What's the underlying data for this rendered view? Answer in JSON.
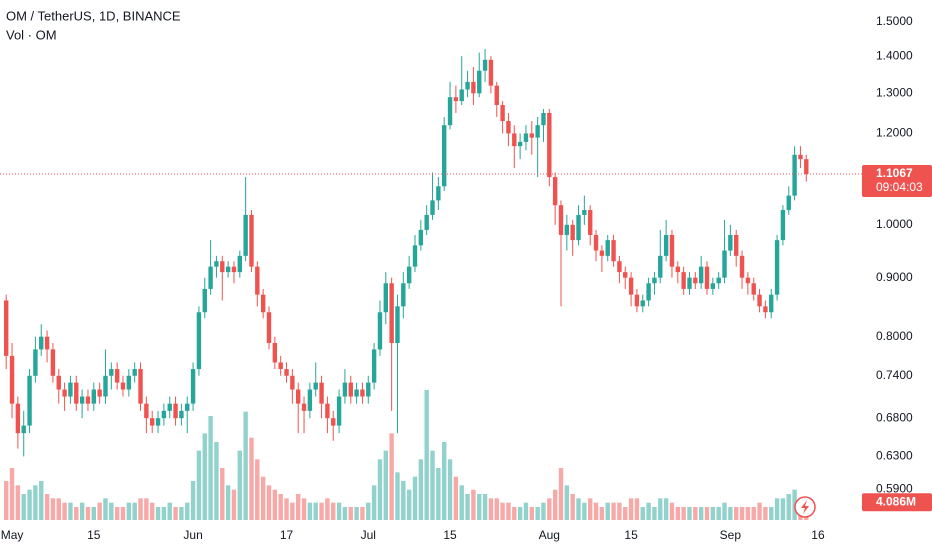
{
  "chart_data": {
    "type": "candlestick",
    "title": "OM / TetherUS, 1D, BINANCE",
    "subtitle": "Vol · OM",
    "log_scale": true,
    "grid": false,
    "up_color": "#26a69a",
    "down_color": "#ef5350",
    "ylim": [
      0.555,
      1.566
    ],
    "yticks": [
      {
        "value": 0.59,
        "label": "0.5900"
      },
      {
        "value": 0.63,
        "label": "0.6300"
      },
      {
        "value": 0.68,
        "label": "0.6800"
      },
      {
        "value": 0.74,
        "label": "0.7400"
      },
      {
        "value": 0.8,
        "label": "0.8000"
      },
      {
        "value": 0.9,
        "label": "0.9000"
      },
      {
        "value": 1.0,
        "label": "1.0000"
      },
      {
        "value": 1.2,
        "label": "1.2000"
      },
      {
        "value": 1.3,
        "label": "1.3000"
      },
      {
        "value": 1.4,
        "label": "1.4000"
      },
      {
        "value": 1.5,
        "label": "1.5000"
      }
    ],
    "xticks": [
      {
        "value": 1,
        "label": "May"
      },
      {
        "value": 15,
        "label": "15"
      },
      {
        "value": 32,
        "label": "Jun"
      },
      {
        "value": 48,
        "label": "17"
      },
      {
        "value": 62,
        "label": "Jul"
      },
      {
        "value": 76,
        "label": "15"
      },
      {
        "value": 93,
        "label": "Aug"
      },
      {
        "value": 107,
        "label": "15"
      },
      {
        "value": 124,
        "label": "Sep"
      },
      {
        "value": 139,
        "label": "16"
      }
    ],
    "open": [
      0.86,
      0.77,
      0.7,
      0.66,
      0.67,
      0.74,
      0.78,
      0.8,
      0.78,
      0.74,
      0.72,
      0.71,
      0.73,
      0.7,
      0.71,
      0.7,
      0.72,
      0.71,
      0.74,
      0.75,
      0.73,
      0.72,
      0.74,
      0.75,
      0.7,
      0.68,
      0.67,
      0.68,
      0.69,
      0.7,
      0.68,
      0.69,
      0.7,
      0.75,
      0.84,
      0.88,
      0.92,
      0.93,
      0.91,
      0.92,
      0.91,
      0.94,
      1.02,
      0.92,
      0.87,
      0.84,
      0.79,
      0.76,
      0.75,
      0.74,
      0.72,
      0.7,
      0.69,
      0.72,
      0.73,
      0.7,
      0.68,
      0.67,
      0.71,
      0.73,
      0.71,
      0.72,
      0.71,
      0.73,
      0.78,
      0.84,
      0.89,
      0.79,
      0.85,
      0.89,
      0.92,
      0.96,
      0.99,
      1.02,
      1.05,
      1.08,
      1.22,
      1.29,
      1.28,
      1.31,
      1.33,
      1.3,
      1.36,
      1.39,
      1.32,
      1.27,
      1.23,
      1.2,
      1.17,
      1.18,
      1.2,
      1.19,
      1.22,
      1.25,
      1.1,
      1.04,
      0.98,
      1.0,
      0.97,
      1.02,
      1.03,
      0.98,
      0.95,
      0.94,
      0.97,
      0.93,
      0.91,
      0.9,
      0.87,
      0.85,
      0.86,
      0.89,
      0.9,
      0.94,
      0.98,
      0.92,
      0.91,
      0.88,
      0.9,
      0.89,
      0.92,
      0.88,
      0.89,
      0.9,
      0.95,
      0.98,
      0.94,
      0.9,
      0.89,
      0.87,
      0.85,
      0.84,
      0.87,
      0.97,
      1.03,
      1.06,
      1.15,
      1.14
    ],
    "high": [
      0.87,
      0.79,
      0.71,
      0.69,
      0.75,
      0.8,
      0.82,
      0.81,
      0.79,
      0.75,
      0.73,
      0.74,
      0.74,
      0.72,
      0.72,
      0.73,
      0.73,
      0.78,
      0.76,
      0.76,
      0.74,
      0.75,
      0.76,
      0.76,
      0.71,
      0.69,
      0.69,
      0.7,
      0.71,
      0.71,
      0.7,
      0.71,
      0.76,
      0.85,
      0.9,
      0.97,
      0.94,
      0.94,
      0.93,
      0.93,
      0.95,
      1.1,
      1.03,
      0.93,
      0.88,
      0.85,
      0.8,
      0.77,
      0.76,
      0.75,
      0.73,
      0.71,
      0.73,
      0.76,
      0.74,
      0.71,
      0.69,
      0.72,
      0.75,
      0.74,
      0.73,
      0.73,
      0.74,
      0.79,
      0.86,
      0.91,
      0.9,
      0.87,
      0.91,
      0.94,
      0.98,
      1.01,
      1.04,
      1.11,
      1.1,
      1.24,
      1.33,
      1.32,
      1.4,
      1.36,
      1.37,
      1.41,
      1.42,
      1.4,
      1.33,
      1.28,
      1.25,
      1.22,
      1.2,
      1.22,
      1.23,
      1.24,
      1.26,
      1.26,
      1.11,
      1.05,
      1.02,
      1.01,
      1.04,
      1.06,
      1.04,
      0.99,
      0.96,
      0.98,
      0.98,
      0.94,
      0.92,
      0.91,
      0.88,
      0.87,
      0.9,
      0.91,
      0.99,
      1.01,
      0.99,
      0.93,
      0.92,
      0.91,
      0.91,
      0.94,
      0.93,
      0.9,
      0.91,
      1.01,
      1.0,
      0.99,
      0.95,
      0.91,
      0.9,
      0.88,
      0.86,
      0.88,
      0.98,
      1.04,
      1.08,
      1.17,
      1.17,
      1.15
    ],
    "low": [
      0.75,
      0.68,
      0.64,
      0.63,
      0.66,
      0.73,
      0.77,
      0.76,
      0.73,
      0.7,
      0.69,
      0.7,
      0.69,
      0.68,
      0.69,
      0.69,
      0.7,
      0.7,
      0.72,
      0.72,
      0.71,
      0.71,
      0.73,
      0.69,
      0.66,
      0.66,
      0.66,
      0.67,
      0.68,
      0.67,
      0.67,
      0.66,
      0.69,
      0.74,
      0.83,
      0.87,
      0.9,
      0.86,
      0.9,
      0.89,
      0.9,
      0.93,
      0.91,
      0.85,
      0.83,
      0.78,
      0.75,
      0.74,
      0.73,
      0.7,
      0.66,
      0.66,
      0.68,
      0.71,
      0.68,
      0.66,
      0.65,
      0.66,
      0.7,
      0.7,
      0.7,
      0.7,
      0.7,
      0.72,
      0.77,
      0.82,
      0.69,
      0.66,
      0.83,
      0.88,
      0.91,
      0.95,
      0.98,
      1.01,
      1.03,
      1.07,
      1.21,
      1.25,
      1.27,
      1.29,
      1.27,
      1.29,
      1.33,
      1.3,
      1.24,
      1.2,
      1.17,
      1.12,
      1.14,
      1.16,
      1.15,
      1.1,
      1.18,
      1.08,
      1.0,
      0.85,
      0.95,
      0.94,
      0.96,
      1.0,
      0.96,
      0.93,
      0.91,
      0.93,
      0.92,
      0.89,
      0.88,
      0.85,
      0.84,
      0.84,
      0.85,
      0.87,
      0.89,
      0.93,
      0.9,
      0.89,
      0.87,
      0.87,
      0.88,
      0.88,
      0.87,
      0.87,
      0.88,
      0.89,
      0.94,
      0.92,
      0.88,
      0.87,
      0.86,
      0.84,
      0.83,
      0.83,
      0.86,
      0.96,
      1.02,
      1.05,
      1.12,
      1.09
    ],
    "close": [
      0.77,
      0.7,
      0.66,
      0.67,
      0.74,
      0.78,
      0.8,
      0.78,
      0.74,
      0.72,
      0.71,
      0.73,
      0.7,
      0.71,
      0.7,
      0.72,
      0.71,
      0.74,
      0.75,
      0.73,
      0.72,
      0.74,
      0.75,
      0.7,
      0.68,
      0.67,
      0.68,
      0.69,
      0.7,
      0.68,
      0.69,
      0.7,
      0.75,
      0.84,
      0.88,
      0.92,
      0.93,
      0.91,
      0.92,
      0.91,
      0.94,
      1.02,
      0.92,
      0.87,
      0.84,
      0.79,
      0.76,
      0.75,
      0.74,
      0.72,
      0.7,
      0.69,
      0.72,
      0.73,
      0.7,
      0.68,
      0.67,
      0.71,
      0.73,
      0.71,
      0.72,
      0.71,
      0.73,
      0.78,
      0.84,
      0.89,
      0.79,
      0.85,
      0.89,
      0.92,
      0.96,
      0.99,
      1.02,
      1.05,
      1.08,
      1.22,
      1.29,
      1.28,
      1.31,
      1.33,
      1.3,
      1.36,
      1.39,
      1.32,
      1.27,
      1.23,
      1.2,
      1.17,
      1.18,
      1.2,
      1.19,
      1.22,
      1.25,
      1.1,
      1.04,
      0.98,
      1.0,
      0.97,
      1.02,
      1.03,
      0.98,
      0.95,
      0.94,
      0.97,
      0.93,
      0.91,
      0.9,
      0.87,
      0.85,
      0.86,
      0.89,
      0.9,
      0.94,
      0.98,
      0.92,
      0.91,
      0.88,
      0.9,
      0.89,
      0.92,
      0.88,
      0.89,
      0.9,
      0.95,
      0.98,
      0.94,
      0.9,
      0.89,
      0.87,
      0.85,
      0.84,
      0.87,
      0.97,
      1.03,
      1.06,
      1.15,
      1.14,
      1.1067
    ],
    "volume": [
      9,
      12,
      8,
      6,
      7,
      8,
      9,
      6,
      5,
      5,
      4,
      4,
      3,
      4,
      3,
      3,
      4,
      5,
      4,
      3,
      3,
      4,
      4,
      5,
      5,
      4,
      3,
      3,
      4,
      3,
      3,
      4,
      9,
      16,
      20,
      24,
      18,
      12,
      8,
      7,
      16,
      25,
      19,
      14,
      10,
      8,
      7,
      6,
      5,
      4,
      6,
      5,
      4,
      4,
      4,
      5,
      4,
      4,
      3,
      3,
      3,
      3,
      4,
      8,
      14,
      16,
      20,
      11,
      9,
      7,
      10,
      14,
      30,
      16,
      12,
      18,
      14,
      10,
      8,
      6,
      7,
      6,
      6,
      5,
      5,
      4,
      4,
      3,
      3,
      4,
      3,
      3,
      4,
      5,
      7,
      12,
      8,
      6,
      5,
      4,
      5,
      4,
      3,
      4,
      4,
      4,
      3,
      5,
      5,
      3,
      4,
      3,
      5,
      5,
      4,
      3,
      3,
      3,
      3,
      3,
      3,
      3,
      3,
      4,
      3,
      3,
      3,
      3,
      3,
      4,
      3,
      3,
      5,
      5,
      6,
      7,
      5,
      4.086
    ],
    "last_volume_label": "4.086M",
    "countdown": "09:04:03"
  }
}
